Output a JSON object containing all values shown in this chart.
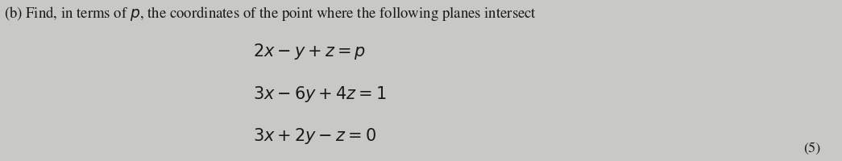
{
  "title": "(b) Find, in terms of $p$, the coordinates of the point where the following planes intersect",
  "eq1": "$2x - y + z = p$",
  "eq2": "$3x - 6y + 4z = 1$",
  "eq3": "$3x + 2y - z = 0$",
  "marks": "(5)",
  "bg_color": "#c8c8c4",
  "text_color": "#1a1a1a",
  "title_fontsize": 13.5,
  "eq_fontsize": 15,
  "marks_fontsize": 13
}
